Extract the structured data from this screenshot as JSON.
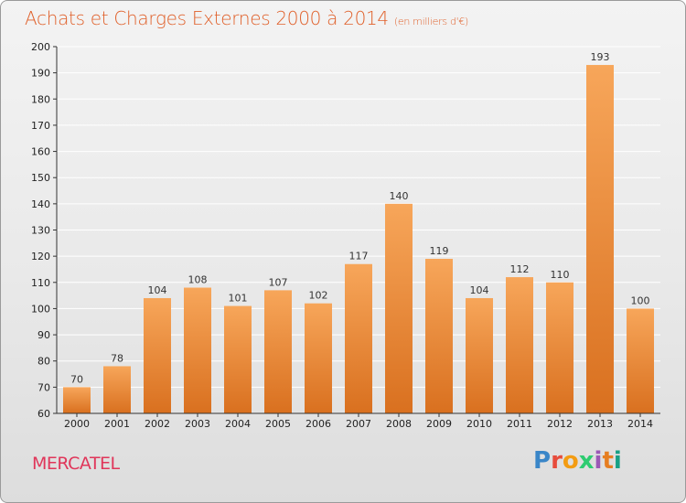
{
  "title": "Achats et Charges Externes 2000 à 2014",
  "subtitle": "(en milliers d'€)",
  "commune": "MERCATEL",
  "brand": [
    "P",
    "r",
    "o",
    "x",
    "i",
    "t",
    "i"
  ],
  "colors": {
    "title": "#e0602a",
    "commune": "#e0365a",
    "bar_top": "#f7a65a",
    "bar_bottom": "#d9701f",
    "grid": "#ffffff",
    "axis": "#333333"
  },
  "chart_data": {
    "type": "bar",
    "categories": [
      "2000",
      "2001",
      "2002",
      "2003",
      "2004",
      "2005",
      "2006",
      "2007",
      "2008",
      "2009",
      "2010",
      "2011",
      "2012",
      "2013",
      "2014"
    ],
    "values": [
      70,
      78,
      104,
      108,
      101,
      107,
      102,
      117,
      140,
      119,
      104,
      112,
      110,
      193,
      100
    ],
    "ylim": [
      60,
      200
    ],
    "yticks": [
      60,
      70,
      80,
      90,
      100,
      110,
      120,
      130,
      140,
      150,
      160,
      170,
      180,
      190,
      200
    ],
    "grid": true,
    "data_labels": true
  }
}
